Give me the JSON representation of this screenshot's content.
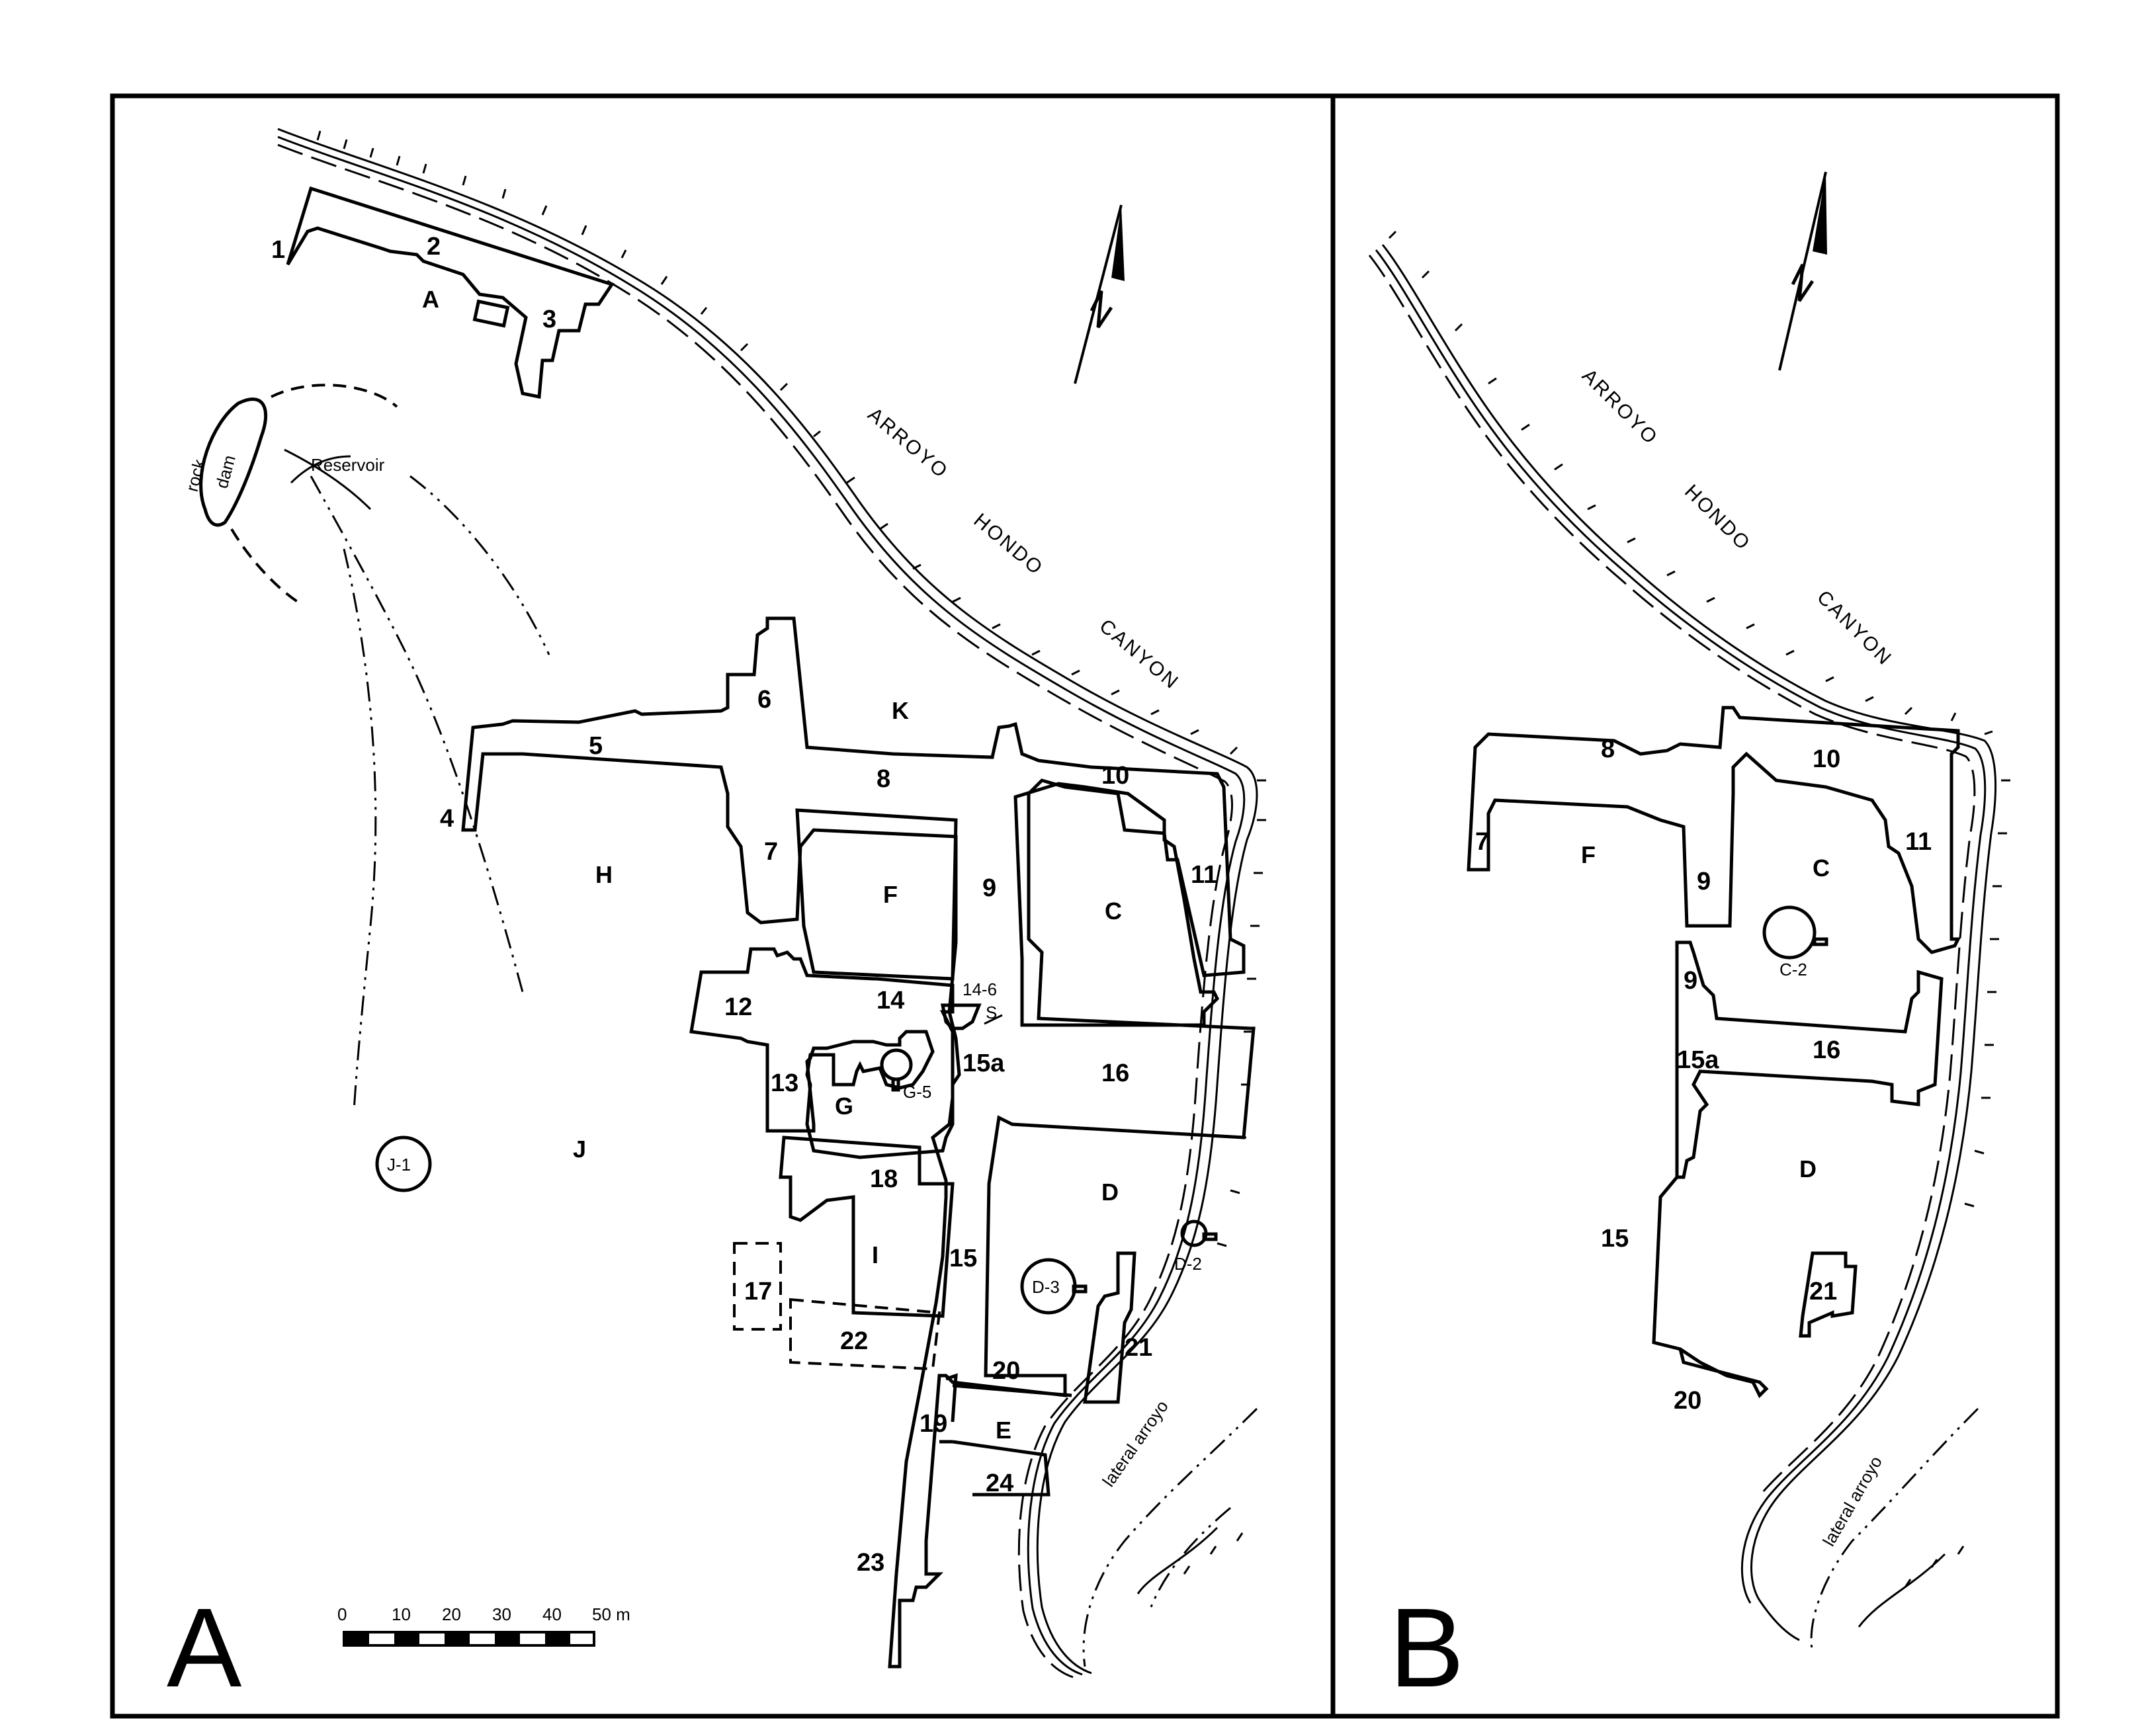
{
  "panel_a": {
    "label": "A",
    "canyon": [
      "ARROYO",
      "HONDO",
      "CANYON"
    ],
    "room_blocks": [
      "1",
      "2",
      "3",
      "4",
      "5",
      "6",
      "7",
      "8",
      "9",
      "10",
      "11",
      "12",
      "13",
      "14",
      "15",
      "15a",
      "16",
      "17",
      "18",
      "19",
      "20",
      "21",
      "22",
      "23",
      "24"
    ],
    "plazas": [
      "A",
      "C",
      "D",
      "E",
      "F",
      "G",
      "H",
      "I",
      "J",
      "K"
    ],
    "features": {
      "reservoir": "Reservoir",
      "rock": "rock",
      "dam": "dam",
      "kiva_14_6": "14-6",
      "kiva_14_6_arrow": "S",
      "kiva_g5": "G-5",
      "kiva_j1": "J-1",
      "kiva_d3": "D-3",
      "kiva_d2": "D-2",
      "lateral_arroyo": "lateral arroyo"
    },
    "scale": {
      "ticks": [
        "0",
        "10",
        "20",
        "30",
        "40",
        "50 m"
      ],
      "max_m": 50
    }
  },
  "panel_b": {
    "label": "B",
    "canyon": [
      "ARROYO",
      "HONDO",
      "CANYON"
    ],
    "room_blocks": [
      "7",
      "8",
      "9",
      "9",
      "10",
      "11",
      "15",
      "15a",
      "16",
      "20",
      "21"
    ],
    "plazas": [
      "C",
      "D",
      "F"
    ],
    "features": {
      "kiva_c2": "C-2",
      "lateral_arroyo": "lateral arroyo"
    }
  },
  "colors": {
    "ink": "#000000",
    "paper": "#ffffff"
  },
  "icons": [
    "north-arrow-icon"
  ]
}
